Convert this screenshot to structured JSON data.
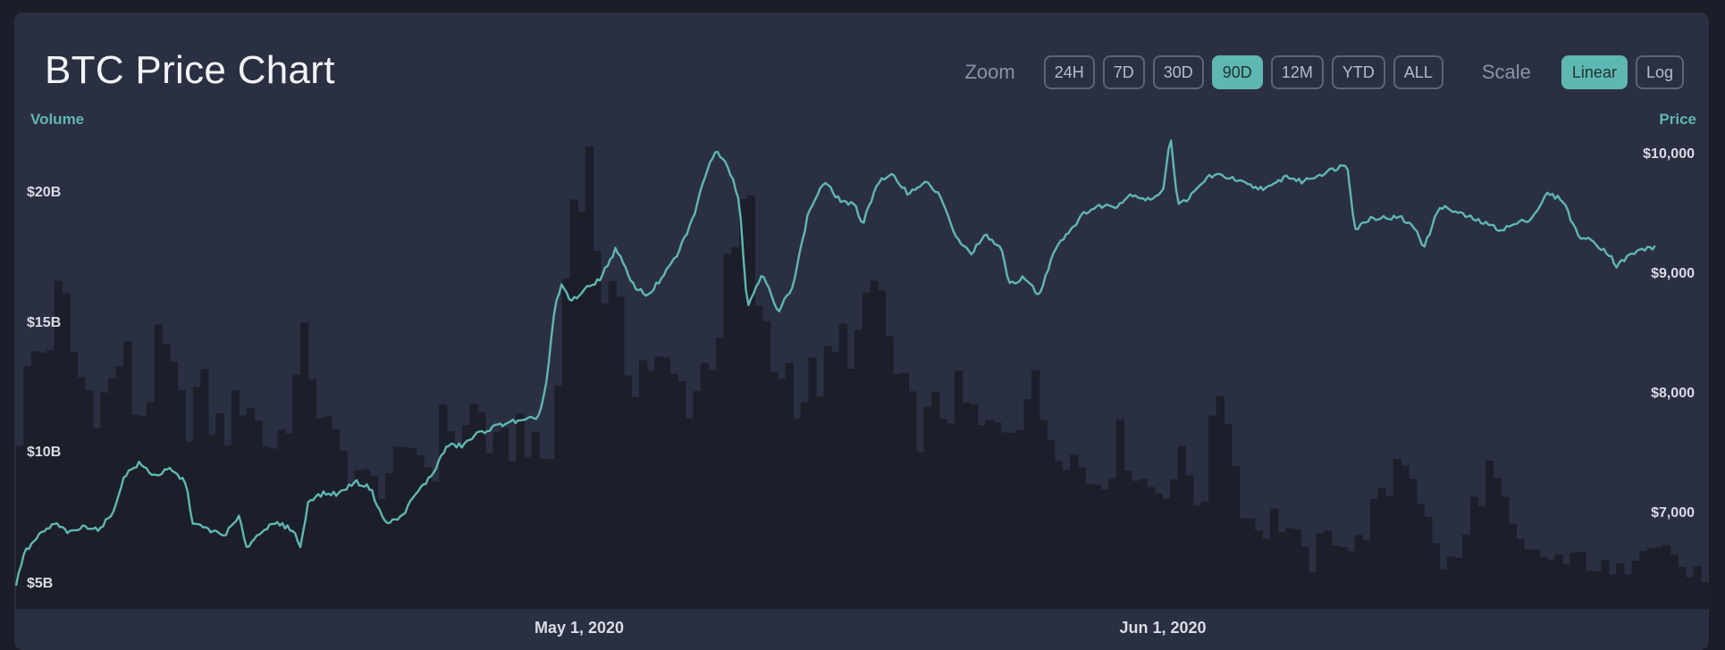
{
  "header": {
    "title": "BTC Price Chart",
    "zoom_label": "Zoom",
    "zoom_options": [
      "24H",
      "7D",
      "30D",
      "90D",
      "12M",
      "YTD",
      "ALL"
    ],
    "zoom_selected": "90D",
    "scale_label": "Scale",
    "scale_options": [
      "Linear",
      "Log"
    ],
    "scale_selected": "Linear"
  },
  "colors": {
    "background": "#1b1d28",
    "card": "#2b2f42",
    "accent": "#5fb7b2",
    "volume_fill": "#1c1e2a"
  },
  "chart_data": [
    {
      "type": "area",
      "name": "volume",
      "ylabel": "Volume",
      "yticks": [
        "$5B",
        "$10B",
        "$15B",
        "$20B"
      ],
      "ylim": [
        4.5,
        21.5
      ],
      "xticks": [
        "May 1, 2020",
        "Jun 1, 2020"
      ],
      "anchors": [
        [
          0,
          10.0
        ],
        [
          2,
          13.5
        ],
        [
          4,
          14.0
        ],
        [
          6,
          16.0
        ],
        [
          8,
          13.0
        ],
        [
          10,
          12.0
        ],
        [
          12,
          12.0
        ],
        [
          14,
          14.0
        ],
        [
          16,
          11.0
        ],
        [
          18,
          13.0
        ],
        [
          19,
          14.0
        ],
        [
          20,
          13.0
        ],
        [
          22,
          11.0
        ],
        [
          24,
          12.5
        ],
        [
          26,
          10.8
        ],
        [
          28,
          11.0
        ],
        [
          30,
          12.5
        ],
        [
          32,
          10.5
        ],
        [
          34,
          10.2
        ],
        [
          36,
          12.0
        ],
        [
          38,
          14.2
        ],
        [
          40,
          11.0
        ],
        [
          42,
          9.8
        ],
        [
          44,
          9.5
        ],
        [
          46,
          8.5
        ],
        [
          48,
          9.0
        ],
        [
          49,
          9.5
        ],
        [
          50,
          9.0
        ],
        [
          52,
          10.5
        ],
        [
          54,
          9.0
        ],
        [
          56,
          11.5
        ],
        [
          58,
          10.3
        ],
        [
          60,
          12.0
        ],
        [
          62,
          9.8
        ],
        [
          64,
          10.0
        ],
        [
          66,
          11.3
        ],
        [
          67,
          10.0
        ],
        [
          68,
          9.5
        ],
        [
          70,
          10.0
        ],
        [
          72,
          19.0
        ],
        [
          74,
          22.0
        ],
        [
          76,
          17.0
        ],
        [
          78,
          15.0
        ],
        [
          80,
          13.0
        ],
        [
          82,
          13.5
        ],
        [
          84,
          13.0
        ],
        [
          86,
          12.5
        ],
        [
          88,
          12.0
        ],
        [
          90,
          13.5
        ],
        [
          92,
          15.5
        ],
        [
          94,
          18.0
        ],
        [
          95,
          20.0
        ],
        [
          96,
          17.0
        ],
        [
          98,
          13.0
        ],
        [
          100,
          13.5
        ],
        [
          102,
          12.0
        ],
        [
          104,
          12.8
        ],
        [
          106,
          13.0
        ],
        [
          108,
          14.5
        ],
        [
          110,
          14.0
        ],
        [
          112,
          17.0
        ],
        [
          114,
          13.0
        ],
        [
          116,
          11.5
        ],
        [
          118,
          10.8
        ],
        [
          120,
          11.5
        ],
        [
          122,
          12.0
        ],
        [
          124,
          11.5
        ],
        [
          126,
          10.5
        ],
        [
          128,
          11.0
        ],
        [
          130,
          11.5
        ],
        [
          132,
          12.5
        ],
        [
          134,
          11.0
        ],
        [
          136,
          10.5
        ],
        [
          138,
          9.5
        ],
        [
          140,
          8.8
        ],
        [
          142,
          9.5
        ],
        [
          144,
          10.5
        ],
        [
          146,
          9.0
        ],
        [
          148,
          8.5
        ],
        [
          150,
          9.0
        ],
        [
          152,
          9.5
        ],
        [
          154,
          8.0
        ],
        [
          155,
          9.2
        ],
        [
          156,
          11.5
        ],
        [
          157,
          13.5
        ],
        [
          158,
          10.0
        ],
        [
          160,
          7.5
        ],
        [
          162,
          7.0
        ],
        [
          164,
          7.5
        ],
        [
          166,
          6.8
        ],
        [
          168,
          5.5
        ],
        [
          170,
          6.5
        ],
        [
          172,
          7.0
        ],
        [
          174,
          6.0
        ],
        [
          176,
          7.5
        ],
        [
          178,
          8.0
        ],
        [
          180,
          10.3
        ],
        [
          182,
          9.0
        ],
        [
          184,
          6.5
        ],
        [
          186,
          5.5
        ],
        [
          188,
          6.0
        ],
        [
          190,
          8.5
        ],
        [
          192,
          9.3
        ],
        [
          194,
          7.0
        ],
        [
          196,
          6.0
        ],
        [
          198,
          5.8
        ],
        [
          200,
          6.0
        ],
        [
          202,
          5.5
        ],
        [
          204,
          6.0
        ],
        [
          206,
          5.5
        ],
        [
          208,
          5.0
        ],
        [
          210,
          6.0
        ],
        [
          212,
          7.0
        ],
        [
          214,
          6.5
        ],
        [
          216,
          5.8
        ],
        [
          217,
          5.5
        ],
        [
          218,
          5.0
        ],
        [
          220,
          5.5
        ]
      ]
    },
    {
      "type": "line",
      "name": "price",
      "ylabel": "Price",
      "yticks": [
        "$7,000",
        "$8,000",
        "$9,000",
        "$10,000"
      ],
      "ylim": [
        6300,
        10400
      ],
      "anchors": [
        [
          0,
          6390
        ],
        [
          1,
          6650
        ],
        [
          3,
          6800
        ],
        [
          5,
          6900
        ],
        [
          7,
          6820
        ],
        [
          9,
          6880
        ],
        [
          11,
          6850
        ],
        [
          13,
          7050
        ],
        [
          14,
          7300
        ],
        [
          16,
          7400
        ],
        [
          18,
          7300
        ],
        [
          20,
          7350
        ],
        [
          22,
          7250
        ],
        [
          23,
          6900
        ],
        [
          25,
          6850
        ],
        [
          27,
          6800
        ],
        [
          29,
          6950
        ],
        [
          30,
          6700
        ],
        [
          32,
          6850
        ],
        [
          34,
          6900
        ],
        [
          36,
          6850
        ],
        [
          37,
          6700
        ],
        [
          38,
          7100
        ],
        [
          40,
          7150
        ],
        [
          42,
          7150
        ],
        [
          44,
          7250
        ],
        [
          46,
          7200
        ],
        [
          48,
          6900
        ],
        [
          50,
          6950
        ],
        [
          52,
          7150
        ],
        [
          54,
          7300
        ],
        [
          56,
          7550
        ],
        [
          58,
          7550
        ],
        [
          60,
          7650
        ],
        [
          62,
          7700
        ],
        [
          64,
          7750
        ],
        [
          66,
          7750
        ],
        [
          68,
          7800
        ],
        [
          69,
          8100
        ],
        [
          70,
          8700
        ],
        [
          71,
          8900
        ],
        [
          72,
          8750
        ],
        [
          74,
          8850
        ],
        [
          76,
          8950
        ],
        [
          78,
          9200
        ],
        [
          80,
          8900
        ],
        [
          82,
          8800
        ],
        [
          84,
          8950
        ],
        [
          86,
          9150
        ],
        [
          88,
          9450
        ],
        [
          90,
          9900
        ],
        [
          91,
          10000
        ],
        [
          92,
          9950
        ],
        [
          93,
          9800
        ],
        [
          94,
          9600
        ],
        [
          95,
          8700
        ],
        [
          97,
          9000
        ],
        [
          99,
          8650
        ],
        [
          101,
          8900
        ],
        [
          103,
          9500
        ],
        [
          105,
          9750
        ],
        [
          107,
          9600
        ],
        [
          109,
          9550
        ],
        [
          110,
          9400
        ],
        [
          112,
          9750
        ],
        [
          114,
          9800
        ],
        [
          116,
          9650
        ],
        [
          118,
          9750
        ],
        [
          120,
          9650
        ],
        [
          122,
          9300
        ],
        [
          124,
          9150
        ],
        [
          126,
          9300
        ],
        [
          128,
          9200
        ],
        [
          129,
          8900
        ],
        [
          131,
          8950
        ],
        [
          133,
          8800
        ],
        [
          135,
          9200
        ],
        [
          137,
          9350
        ],
        [
          139,
          9500
        ],
        [
          141,
          9550
        ],
        [
          143,
          9550
        ],
        [
          145,
          9650
        ],
        [
          147,
          9600
        ],
        [
          149,
          9650
        ],
        [
          150,
          10150
        ],
        [
          151,
          9550
        ],
        [
          153,
          9650
        ],
        [
          155,
          9800
        ],
        [
          157,
          9800
        ],
        [
          159,
          9750
        ],
        [
          161,
          9700
        ],
        [
          163,
          9700
        ],
        [
          165,
          9800
        ],
        [
          167,
          9750
        ],
        [
          169,
          9800
        ],
        [
          171,
          9850
        ],
        [
          173,
          9900
        ],
        [
          174,
          9350
        ],
        [
          176,
          9450
        ],
        [
          178,
          9450
        ],
        [
          180,
          9450
        ],
        [
          182,
          9350
        ],
        [
          183,
          9200
        ],
        [
          185,
          9550
        ],
        [
          187,
          9500
        ],
        [
          189,
          9450
        ],
        [
          191,
          9400
        ],
        [
          193,
          9350
        ],
        [
          195,
          9400
        ],
        [
          197,
          9450
        ],
        [
          199,
          9650
        ],
        [
          201,
          9600
        ],
        [
          203,
          9300
        ],
        [
          205,
          9250
        ],
        [
          207,
          9150
        ],
        [
          208,
          9050
        ],
        [
          210,
          9150
        ],
        [
          212,
          9200
        ],
        [
          213,
          9200
        ]
      ]
    }
  ]
}
